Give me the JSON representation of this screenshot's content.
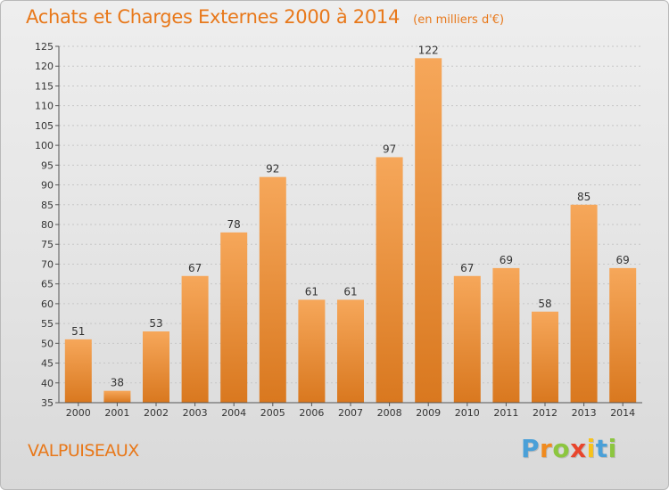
{
  "header": {
    "title": "Achats et Charges Externes 2000 à 2014",
    "unit": "(en milliers d'€)"
  },
  "footer": {
    "city": "VALPUISEAUX",
    "logo_letters": [
      "P",
      "r",
      "o",
      "x",
      "i",
      "t",
      "i"
    ]
  },
  "colors": {
    "accent": "#e8781a",
    "bar_top": "#f6a75a",
    "bar_bottom": "#d9781f"
  },
  "chart_data": {
    "type": "bar",
    "title": "Achats et Charges Externes 2000 à 2014",
    "subtitle": "(en milliers d'€)",
    "categories": [
      "2000",
      "2001",
      "2002",
      "2003",
      "2004",
      "2005",
      "2006",
      "2007",
      "2008",
      "2009",
      "2010",
      "2011",
      "2012",
      "2013",
      "2014"
    ],
    "values": [
      51,
      38,
      53,
      67,
      78,
      92,
      61,
      61,
      97,
      122,
      67,
      69,
      58,
      85,
      69
    ],
    "ylim": [
      35,
      125
    ],
    "yticks": [
      35,
      40,
      45,
      50,
      55,
      60,
      65,
      70,
      75,
      80,
      85,
      90,
      95,
      100,
      105,
      110,
      115,
      120,
      125
    ],
    "grid": true,
    "legend": "none"
  }
}
